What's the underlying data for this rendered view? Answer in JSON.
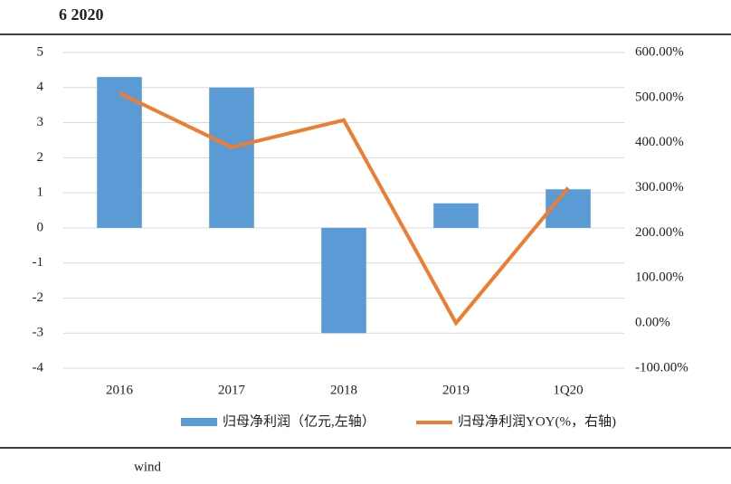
{
  "header": {
    "title": "6 2020"
  },
  "chart_data": {
    "type": "bar_line",
    "categories": [
      "2016",
      "2017",
      "2018",
      "2019",
      "1Q20"
    ],
    "series": [
      {
        "name": "归母净利润（亿元,左轴）",
        "color": "#5b9bd5",
        "kind": "bar",
        "axis": "y",
        "values": [
          4.3,
          4.0,
          -3.0,
          0.7,
          1.1
        ]
      },
      {
        "name": "归母净利润YOY(%，右轴)",
        "color": "#ed7d31",
        "kind": "line",
        "axis": "y2",
        "values": [
          510,
          390,
          450,
          0,
          300
        ]
      }
    ],
    "ylim": [
      -4,
      5
    ],
    "yticks": [
      -4,
      -3,
      -2,
      -1,
      0,
      1,
      2,
      3,
      4,
      5
    ],
    "y2lim": [
      -100,
      600
    ],
    "y2ticks": [
      {
        "value": -100,
        "label": "-100.00%"
      },
      {
        "value": 0,
        "label": "0.00%"
      },
      {
        "value": 100,
        "label": "100.00%"
      },
      {
        "value": 200,
        "label": "200.00%"
      },
      {
        "value": 300,
        "label": "300.00%"
      },
      {
        "value": 400,
        "label": "400.00%"
      },
      {
        "value": 500,
        "label": "500.00%"
      },
      {
        "value": 600,
        "label": "600.00%"
      }
    ],
    "grid": true
  },
  "source": "wind"
}
